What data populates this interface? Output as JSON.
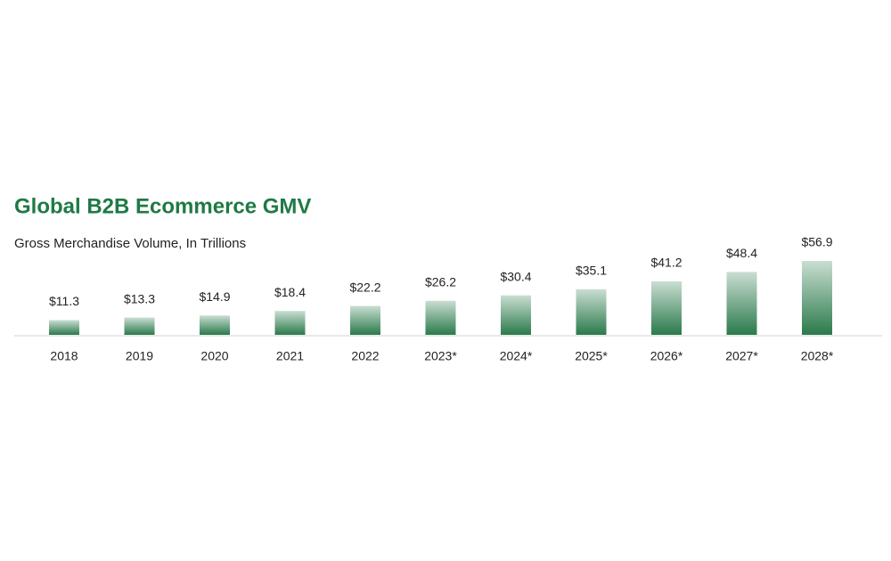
{
  "chart_data": {
    "type": "bar",
    "title": "Global B2B Ecommerce GMV",
    "subtitle": "Gross Merchandise Volume, In Trillions",
    "categories": [
      "2018",
      "2019",
      "2020",
      "2021",
      "2022",
      "2023*",
      "2024*",
      "2025*",
      "2026*",
      "2027*",
      "2028*"
    ],
    "values": [
      11.3,
      13.3,
      14.9,
      18.4,
      22.2,
      26.2,
      30.4,
      35.1,
      41.2,
      48.4,
      56.9
    ],
    "value_labels": [
      "$11.3",
      "$13.3",
      "$14.9",
      "$18.4",
      "$22.2",
      "$26.2",
      "$30.4",
      "$35.1",
      "$41.2",
      "$48.4",
      "$56.9"
    ],
    "color": "#2a7a4b"
  }
}
